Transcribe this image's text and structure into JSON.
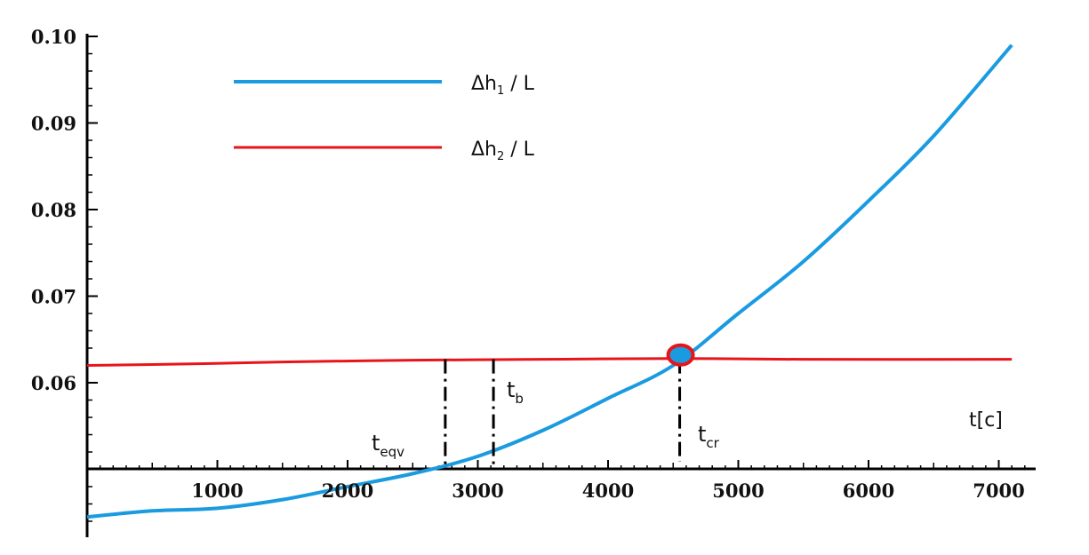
{
  "chart_data": {
    "type": "line",
    "xlabel": "t[c]",
    "ylabel": "",
    "xlim": [
      0,
      7300
    ],
    "ylim": [
      0.05,
      0.1
    ],
    "x_ticks": [
      1000,
      2000,
      3000,
      4000,
      5000,
      6000,
      7000
    ],
    "x_tick_labels": [
      "1000",
      "2000",
      "3000",
      "4000",
      "5000",
      "6000",
      "7000"
    ],
    "y_ticks": [
      0.06,
      0.07,
      0.08,
      0.09,
      0.1
    ],
    "y_tick_labels": [
      "0.06",
      "0.07",
      "0.08",
      "0.09",
      "0.10"
    ],
    "grid": false,
    "legend_position": "top-left",
    "series": [
      {
        "name_main": "Δh",
        "name_sub": "1",
        "name_tail": " / L",
        "color": "#1a9be0",
        "x": [
          0,
          500,
          1000,
          1500,
          2000,
          2500,
          3000,
          3500,
          4000,
          4500,
          5000,
          5500,
          6000,
          6500,
          7100
        ],
        "y": [
          0.0445,
          0.0452,
          0.0455,
          0.0465,
          0.048,
          0.0495,
          0.0515,
          0.0545,
          0.0582,
          0.062,
          0.068,
          0.074,
          0.081,
          0.0885,
          0.099
        ]
      },
      {
        "name_main": "Δh",
        "name_sub": "2",
        "name_tail": " / L",
        "color": "#e8141a",
        "x": [
          0,
          900,
          1500,
          2500,
          3500,
          4500,
          5500,
          7100
        ],
        "y": [
          0.062,
          0.0622,
          0.0624,
          0.0626,
          0.0627,
          0.0628,
          0.0627,
          0.0627
        ]
      }
    ],
    "marker": {
      "x": 4550,
      "y": 0.063,
      "fill": "#1a9be0",
      "stroke": "#e8141a"
    },
    "annotations": [
      {
        "main": "t",
        "sub": "eqv",
        "x": 2750
      },
      {
        "main": "t",
        "sub": "b",
        "x": 3120
      },
      {
        "main": "t",
        "sub": "cr",
        "x": 4550
      }
    ]
  }
}
